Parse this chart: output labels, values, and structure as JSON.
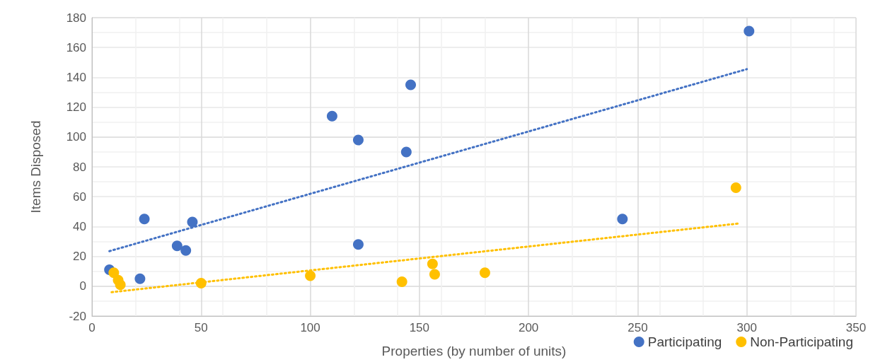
{
  "chart_data": {
    "type": "scatter",
    "xlabel": "Properties (by number of units)",
    "ylabel": "Items Disposed",
    "xlim": [
      0,
      350
    ],
    "xticks": [
      0,
      50,
      100,
      150,
      200,
      250,
      300,
      350
    ],
    "ylim": [
      -20,
      180
    ],
    "yticks": [
      -20,
      0,
      20,
      40,
      60,
      80,
      100,
      120,
      140,
      160,
      180
    ],
    "grid": true,
    "legend": "bottom right",
    "marker": "circle",
    "series": [
      {
        "name": "Participating",
        "color": "#4472c4",
        "x": [
          8,
          24,
          22,
          39,
          43,
          46,
          110,
          122,
          144,
          146,
          122,
          243,
          301
        ],
        "values": [
          11,
          45,
          5,
          27,
          24,
          43,
          114,
          98,
          90,
          135,
          28,
          45,
          171
        ]
      },
      {
        "name": "Non-Participating",
        "color": "#ffc000",
        "x": [
          10,
          12,
          13,
          50,
          100,
          142,
          156,
          157,
          180,
          295
        ],
        "values": [
          9,
          4,
          1,
          2,
          7,
          3,
          15,
          8,
          9,
          66
        ]
      },
      {
        "type": "line",
        "color": "#4472c4",
        "line_style": "dotted",
        "marker": "none",
        "x": [
          8,
          300
        ],
        "values": [
          23.5,
          145.5
        ]
      },
      {
        "type": "line",
        "color": "#ffc000",
        "line_style": "dotted",
        "marker": "none",
        "x": [
          9,
          296
        ],
        "values": [
          -4,
          42
        ]
      }
    ]
  }
}
